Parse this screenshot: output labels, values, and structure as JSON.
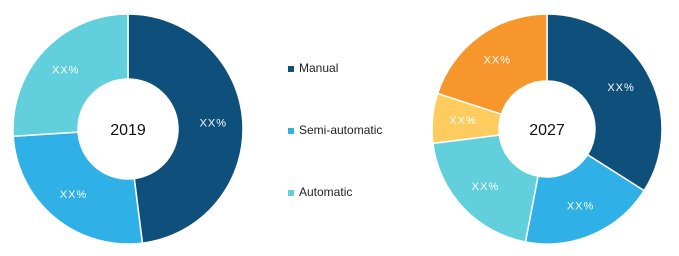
{
  "chart_data": [
    {
      "type": "donut",
      "center_label": "2019",
      "values": [
        48,
        26,
        26
      ],
      "value_labels": [
        "XX%",
        "XX%",
        "XX%"
      ],
      "colors": [
        "#0e4f7c",
        "#2fb0e6",
        "#62d0dc"
      ]
    },
    {
      "type": "donut",
      "center_label": "2027",
      "values": [
        34,
        19,
        20,
        7,
        20
      ],
      "value_labels": [
        "XX%",
        "XX%",
        "XX%",
        "XX%",
        "XX%"
      ],
      "colors": [
        "#0e4f7c",
        "#2fb0e6",
        "#62d0dc",
        "#fecb5e",
        "#f7962b"
      ]
    }
  ],
  "legend": [
    {
      "name": "Manual",
      "color": "#0e4f7c"
    },
    {
      "name": "Semi-automatic",
      "color": "#2fb0e6"
    },
    {
      "name": "Automatic",
      "color": "#62d0dc"
    }
  ]
}
